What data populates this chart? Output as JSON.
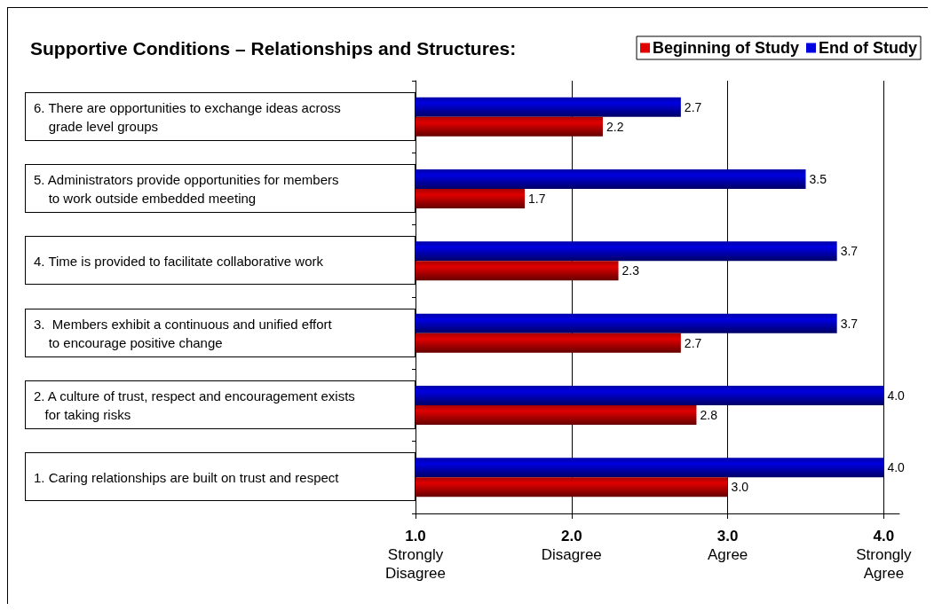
{
  "chart_data": {
    "type": "bar",
    "orientation": "horizontal",
    "title": "Supportive Conditions – Relationships and Structures:",
    "categories": [
      "6. There are opportunities to exchange ideas across\n    grade level groups",
      "5. Administrators provide opportunities for members\n    to work outside embedded meeting",
      "4. Time is provided to facilitate collaborative work",
      "3.  Members exhibit a continuous and unified effort\n    to encourage positive change",
      "2. A culture of trust, respect and encouragement exists\n   for taking risks",
      "1. Caring relationships are built on trust and respect"
    ],
    "series": [
      {
        "name": "Beginning of Study",
        "color": "#e00000",
        "values": [
          2.2,
          1.7,
          2.3,
          2.7,
          2.8,
          3.0
        ],
        "value_labels": [
          "2.2",
          "1.7",
          "2.3",
          "2.7",
          "2.8",
          "3.0"
        ]
      },
      {
        "name": "End of Study",
        "color": "#0000e0",
        "values": [
          2.7,
          3.5,
          3.7,
          3.7,
          4.0,
          4.0
        ],
        "value_labels": [
          "2.7",
          "3.5",
          "3.7",
          "3.7",
          "4.0",
          "4.0"
        ]
      }
    ],
    "xlim": [
      1,
      4.1
    ],
    "xticks": [
      {
        "value": 1,
        "label": "1.0\nStrongly\nDisagree"
      },
      {
        "value": 2,
        "label": "2.0\nDisagree"
      },
      {
        "value": 3,
        "label": "3.0\nAgree"
      },
      {
        "value": 4,
        "label": "4.0\nStrongly\nAgree"
      }
    ],
    "grid": "x",
    "legend": "top right"
  }
}
